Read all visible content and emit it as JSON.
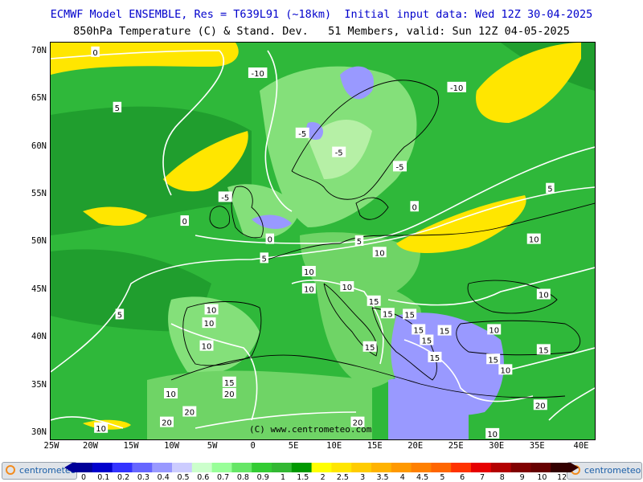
{
  "header": {
    "line1": "ECMWF Model ENSEMBLE, Res = T639L91 (~18km)  Initial input data: Wed 12Z 30-04-2025",
    "line2": "850hPa Temperature (C) & Stand. Dev.   51 Members, valid: Sun 12Z 04-05-2025"
  },
  "axes": {
    "lat_labels": [
      "70N",
      "65N",
      "60N",
      "55N",
      "50N",
      "45N",
      "40N",
      "35N",
      "30N"
    ],
    "lon_labels": [
      "25W",
      "20W",
      "15W",
      "10W",
      "5W",
      "0",
      "5E",
      "10E",
      "15E",
      "20E",
      "25E",
      "30E",
      "35E",
      "40E"
    ]
  },
  "contour_labels": [
    {
      "text": "0",
      "lon": -19.5,
      "lat": 70.0
    },
    {
      "text": "-10",
      "lon": 0.5,
      "lat": 67.8
    },
    {
      "text": "-10",
      "lon": 25.0,
      "lat": 66.3
    },
    {
      "text": "5",
      "lon": -16.8,
      "lat": 64.2
    },
    {
      "text": "-5",
      "lon": 6.0,
      "lat": 61.5
    },
    {
      "text": "-5",
      "lon": 10.5,
      "lat": 59.5
    },
    {
      "text": "-5",
      "lon": 18.0,
      "lat": 58.0
    },
    {
      "text": "-5",
      "lon": -3.5,
      "lat": 54.8
    },
    {
      "text": "5",
      "lon": 36.5,
      "lat": 55.7
    },
    {
      "text": "0",
      "lon": 19.8,
      "lat": 53.8
    },
    {
      "text": "0",
      "lon": -8.5,
      "lat": 52.3
    },
    {
      "text": "0",
      "lon": 2.0,
      "lat": 50.4
    },
    {
      "text": "5",
      "lon": 13.0,
      "lat": 50.2
    },
    {
      "text": "10",
      "lon": 15.5,
      "lat": 49.0
    },
    {
      "text": "10",
      "lon": 34.5,
      "lat": 50.4
    },
    {
      "text": "5",
      "lon": 1.3,
      "lat": 48.4
    },
    {
      "text": "10",
      "lon": 6.8,
      "lat": 47.0
    },
    {
      "text": "10",
      "lon": 6.8,
      "lat": 45.2
    },
    {
      "text": "10",
      "lon": 11.5,
      "lat": 45.4
    },
    {
      "text": "15",
      "lon": 14.8,
      "lat": 43.9
    },
    {
      "text": "15",
      "lon": 16.5,
      "lat": 42.6
    },
    {
      "text": "15",
      "lon": 19.2,
      "lat": 42.5
    },
    {
      "text": "15",
      "lon": 20.3,
      "lat": 40.9
    },
    {
      "text": "15",
      "lon": 21.3,
      "lat": 39.8
    },
    {
      "text": "15",
      "lon": 23.5,
      "lat": 40.8
    },
    {
      "text": "15",
      "lon": 22.3,
      "lat": 38.0
    },
    {
      "text": "15",
      "lon": 14.3,
      "lat": 39.1
    },
    {
      "text": "15",
      "lon": 29.5,
      "lat": 37.8
    },
    {
      "text": "10",
      "lon": 29.6,
      "lat": 40.9
    },
    {
      "text": "10",
      "lon": 35.7,
      "lat": 44.6
    },
    {
      "text": "15",
      "lon": 35.7,
      "lat": 38.8
    },
    {
      "text": "10",
      "lon": 31.0,
      "lat": 36.7
    },
    {
      "text": "10",
      "lon": -5.2,
      "lat": 43.0
    },
    {
      "text": "10",
      "lon": -5.5,
      "lat": 41.6
    },
    {
      "text": "10",
      "lon": -5.8,
      "lat": 39.2
    },
    {
      "text": "5",
      "lon": -16.5,
      "lat": 42.5
    },
    {
      "text": "15",
      "lon": -3.0,
      "lat": 35.4
    },
    {
      "text": "20",
      "lon": -3.0,
      "lat": 34.2
    },
    {
      "text": "10",
      "lon": -10.2,
      "lat": 34.2
    },
    {
      "text": "20",
      "lon": -7.9,
      "lat": 32.3
    },
    {
      "text": "20",
      "lon": -10.7,
      "lat": 31.2
    },
    {
      "text": "20",
      "lon": 12.8,
      "lat": 31.2
    },
    {
      "text": "10",
      "lon": 29.4,
      "lat": 30.0
    },
    {
      "text": "20",
      "lon": 35.3,
      "lat": 33.0
    },
    {
      "text": "10",
      "lon": -18.8,
      "lat": 30.6
    }
  ],
  "copyright": "(C) www.centrometeo.com",
  "colorbar": {
    "labels": [
      "0",
      "0.1",
      "0.2",
      "0.3",
      "0.4",
      "0.5",
      "0.6",
      "0.7",
      "0.8",
      "0.9",
      "1",
      "1.5",
      "2",
      "2.5",
      "3",
      "3.5",
      "4",
      "4.5",
      "5",
      "6",
      "7",
      "8",
      "9",
      "10",
      "12"
    ],
    "colors": [
      "#000099",
      "#0000cc",
      "#3333ff",
      "#6666ff",
      "#9999ff",
      "#ccccff",
      "#ccffcc",
      "#99ff99",
      "#66e666",
      "#33cc33",
      "#33b833",
      "#009900",
      "#ffff00",
      "#ffe600",
      "#ffcc00",
      "#ffb300",
      "#ff9900",
      "#ff8000",
      "#ff6600",
      "#ff3300",
      "#e60000",
      "#b30000",
      "#800000",
      "#660000",
      "#330000"
    ]
  },
  "logos": {
    "left": "centrometeo",
    "right": "centrometeo"
  },
  "colors": {
    "sea": "#2fb83a",
    "header_text": "#0000cc",
    "contour": "#ffffff",
    "coast": "#000000"
  }
}
